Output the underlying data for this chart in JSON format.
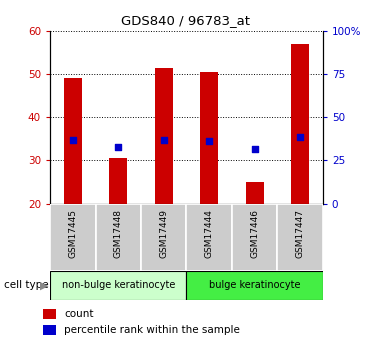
{
  "title": "GDS840 / 96783_at",
  "samples": [
    "GSM17445",
    "GSM17448",
    "GSM17449",
    "GSM17444",
    "GSM17446",
    "GSM17447"
  ],
  "counts": [
    49,
    30.5,
    51.5,
    50.5,
    25,
    57
  ],
  "percentile_ranks": [
    37,
    33,
    37,
    36.5,
    31.5,
    38.5
  ],
  "ylim_left": [
    20,
    60
  ],
  "ylim_right": [
    0,
    100
  ],
  "yticks_left": [
    20,
    30,
    40,
    50,
    60
  ],
  "yticks_right": [
    0,
    25,
    50,
    75,
    100
  ],
  "ytick_labels_right": [
    "0",
    "25",
    "50",
    "75",
    "100%"
  ],
  "bar_color": "#cc0000",
  "dot_color": "#0000cc",
  "bar_width": 0.4,
  "group1_color": "#ccffcc",
  "group2_color": "#44ee44",
  "group1_label": "non-bulge keratinocyte",
  "group2_label": "bulge keratinocyte",
  "cell_type_label": "cell type",
  "legend_count": "count",
  "legend_percentile": "percentile rank within the sample",
  "bg_color": "#ffffff",
  "plot_bg": "#ffffff",
  "sample_box_bg": "#cccccc",
  "left_tick_color": "#cc0000",
  "right_tick_color": "#0000cc",
  "ybase": 20,
  "figsize": [
    3.71,
    3.45
  ],
  "dpi": 100
}
